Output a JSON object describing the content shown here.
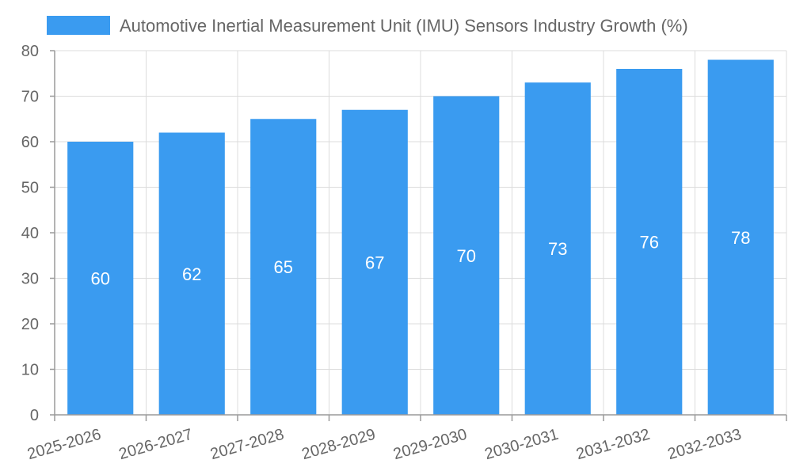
{
  "chart_data": {
    "type": "bar",
    "categories": [
      "2025-2026",
      "2026-2027",
      "2027-2028",
      "2028-2029",
      "2029-2030",
      "2030-2031",
      "2031-2032",
      "2032-2033"
    ],
    "series": [
      {
        "name": "Automotive Inertial Measurement Unit (IMU) Sensors Industry Growth (%)",
        "values": [
          60,
          62,
          65,
          67,
          70,
          73,
          76,
          78
        ],
        "color": "#3a9bf0"
      }
    ],
    "ylim": [
      0,
      80
    ],
    "yticks": [
      0,
      10,
      20,
      30,
      40,
      50,
      60,
      70,
      80
    ],
    "grid": true,
    "legend": "top",
    "data_labels": true
  }
}
